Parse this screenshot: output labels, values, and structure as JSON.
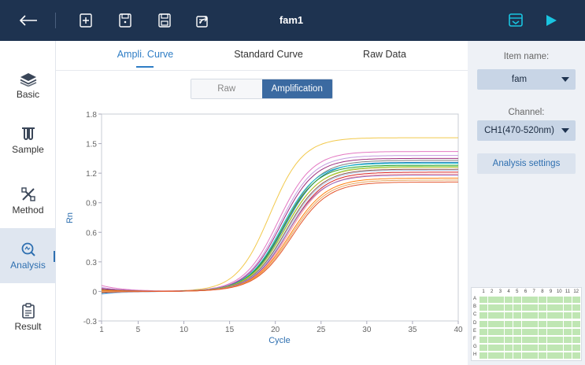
{
  "header": {
    "title": "fam1",
    "icons": [
      "back-arrow-icon",
      "new-file-icon",
      "open-file-icon",
      "save-icon",
      "export-icon",
      "report-icon",
      "run-icon"
    ]
  },
  "sidebar": {
    "items": [
      {
        "label": "Basic",
        "icon": "layers-icon"
      },
      {
        "label": "Sample",
        "icon": "tubes-icon"
      },
      {
        "label": "Method",
        "icon": "method-icon"
      },
      {
        "label": "Analysis",
        "icon": "analysis-icon",
        "active": true
      },
      {
        "label": "Result",
        "icon": "result-icon"
      }
    ]
  },
  "main": {
    "tabs": [
      {
        "label": "Ampli. Curve",
        "active": true
      },
      {
        "label": "Standard Curve"
      },
      {
        "label": "Raw Data"
      }
    ],
    "toggle": {
      "raw": "Raw",
      "amplification": "Amplification",
      "selected": "Amplification"
    }
  },
  "right_panel": {
    "item_name_label": "Item name:",
    "item_name_value": "fam",
    "channel_label": "Channel:",
    "channel_value": "CH1(470-520nm)",
    "analysis_button": "Analysis settings",
    "plate": {
      "columns": [
        "1",
        "2",
        "3",
        "4",
        "5",
        "6",
        "7",
        "8",
        "9",
        "10",
        "11",
        "12"
      ],
      "rows": [
        "A",
        "B",
        "C",
        "D",
        "E",
        "F",
        "G",
        "H"
      ]
    }
  },
  "colors": {
    "header_bg": "#1e3350",
    "accent": "#2e7dc5",
    "run_icon": "#19c4e0",
    "toggle_active": "#3b6aa1",
    "well_fill": "#bfe6b3"
  },
  "chart_data": {
    "type": "line",
    "xlabel": "Cycle",
    "ylabel": "Rn",
    "xlim": [
      1,
      40
    ],
    "ylim": [
      -0.3,
      1.8
    ],
    "xticks": [
      1,
      5,
      10,
      15,
      20,
      25,
      30,
      35,
      40
    ],
    "yticks": [
      -0.3,
      0,
      0.3,
      0.6,
      0.9,
      1.2,
      1.5,
      1.8
    ],
    "grid": false,
    "series": [
      {
        "color": "#f2c94c",
        "plateau": 1.56,
        "midpoint": 19.4,
        "slope": 2.9,
        "start": 0.02
      },
      {
        "color": "#e377c2",
        "plateau": 1.42,
        "midpoint": 20.3,
        "slope": 3.0,
        "start": 0.06
      },
      {
        "color": "#c49adf",
        "plateau": 1.38,
        "midpoint": 20.5,
        "slope": 3.0,
        "start": 0.04
      },
      {
        "color": "#9c2c7e",
        "plateau": 1.35,
        "midpoint": 20.6,
        "slope": 3.0,
        "start": 0.03
      },
      {
        "color": "#7f7f7f",
        "plateau": 1.33,
        "midpoint": 20.9,
        "slope": 3.1,
        "start": 0.02
      },
      {
        "color": "#1f77b4",
        "plateau": 1.31,
        "midpoint": 21.0,
        "slope": 3.1,
        "start": -0.02
      },
      {
        "color": "#17becf",
        "plateau": 1.3,
        "midpoint": 20.7,
        "slope": 3.0,
        "start": 0.0
      },
      {
        "color": "#2ca02c",
        "plateau": 1.28,
        "midpoint": 20.8,
        "slope": 3.0,
        "start": 0.01
      },
      {
        "color": "#98df8a",
        "plateau": 1.27,
        "midpoint": 21.1,
        "slope": 3.1,
        "start": -0.01
      },
      {
        "color": "#bcbd22",
        "plateau": 1.26,
        "midpoint": 21.0,
        "slope": 3.1,
        "start": 0.0
      },
      {
        "color": "#8c564b",
        "plateau": 1.24,
        "midpoint": 21.2,
        "slope": 3.1,
        "start": 0.02
      },
      {
        "color": "#aec7e8",
        "plateau": 1.23,
        "midpoint": 21.3,
        "slope": 3.1,
        "start": -0.03
      },
      {
        "color": "#d62728",
        "plateau": 1.21,
        "midpoint": 21.4,
        "slope": 3.1,
        "start": 0.0
      },
      {
        "color": "#ff9896",
        "plateau": 1.19,
        "midpoint": 21.5,
        "slope": 3.1,
        "start": 0.01
      },
      {
        "color": "#9467bd",
        "plateau": 1.18,
        "midpoint": 21.3,
        "slope": 3.1,
        "start": 0.0
      },
      {
        "color": "#ff7f0e",
        "plateau": 1.15,
        "midpoint": 21.6,
        "slope": 3.2,
        "start": 0.01
      },
      {
        "color": "#e6a45c",
        "plateau": 1.13,
        "midpoint": 21.7,
        "slope": 3.2,
        "start": 0.0
      },
      {
        "color": "#e4572e",
        "plateau": 1.11,
        "midpoint": 21.8,
        "slope": 3.2,
        "start": -0.01
      }
    ]
  }
}
